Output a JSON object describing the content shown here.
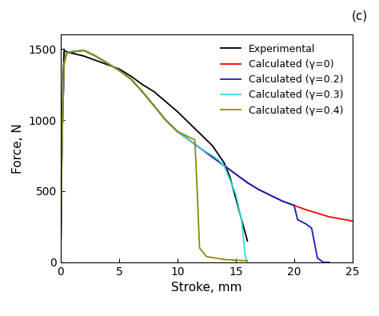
{
  "chart_data": {
    "type": "line",
    "panel_label": "(c)",
    "x_label": "Stroke, mm",
    "y_label": "Force, N",
    "xlim": [
      0,
      25
    ],
    "xticks": [
      0,
      5,
      10,
      15,
      20,
      25
    ],
    "ylim": [
      0,
      1600
    ],
    "yticks": [
      0,
      500,
      1000,
      1500
    ],
    "legend": "upper right",
    "grid": false,
    "series": [
      {
        "name": "Experimental",
        "color": "#000000",
        "x": [
          0,
          0.1,
          0.2,
          0.3,
          0.5,
          1,
          2,
          3,
          4,
          5,
          6,
          7,
          8,
          9,
          10,
          11,
          12,
          13,
          14,
          14.5,
          15,
          15.5,
          16
        ],
        "values": [
          0,
          700,
          1300,
          1490,
          1480,
          1470,
          1450,
          1420,
          1390,
          1360,
          1310,
          1250,
          1200,
          1130,
          1060,
          980,
          900,
          820,
          700,
          600,
          450,
          300,
          150
        ]
      },
      {
        "name": "Calculated (γ=0)",
        "color": "#ff0000",
        "x": [
          0,
          0.1,
          0.3,
          0.5,
          1,
          2,
          3,
          4,
          5,
          6,
          7,
          8,
          9,
          10,
          11,
          12,
          13,
          14,
          15,
          16,
          17,
          18,
          19,
          20,
          21,
          22,
          23,
          24,
          25
        ],
        "values": [
          0,
          800,
          1400,
          1470,
          1480,
          1490,
          1450,
          1400,
          1350,
          1290,
          1200,
          1100,
          1000,
          920,
          860,
          800,
          740,
          680,
          620,
          560,
          510,
          470,
          430,
          400,
          370,
          345,
          320,
          305,
          290
        ]
      },
      {
        "name": "Calculated (γ=0.2)",
        "color": "#1a1ab8",
        "x": [
          0,
          0.1,
          0.3,
          0.5,
          1,
          2,
          3,
          4,
          5,
          6,
          7,
          8,
          9,
          10,
          11,
          12,
          13,
          14,
          15,
          16,
          17,
          18,
          19,
          20,
          20.3,
          21,
          21.5,
          22,
          22.5,
          23
        ],
        "values": [
          0,
          800,
          1400,
          1470,
          1480,
          1490,
          1450,
          1400,
          1350,
          1290,
          1200,
          1100,
          1000,
          920,
          860,
          800,
          740,
          680,
          620,
          560,
          510,
          470,
          430,
          400,
          300,
          270,
          240,
          30,
          0,
          0
        ]
      },
      {
        "name": "Calculated (γ=0.3)",
        "color": "#33dddd",
        "x": [
          0,
          0.1,
          0.3,
          0.5,
          1,
          2,
          3,
          4,
          5,
          6,
          7,
          8,
          9,
          10,
          11,
          12,
          13,
          13.5,
          14,
          14.5,
          15,
          15.5,
          15.8,
          16
        ],
        "values": [
          0,
          800,
          1400,
          1470,
          1485,
          1490,
          1450,
          1400,
          1350,
          1290,
          1200,
          1100,
          1000,
          920,
          860,
          800,
          750,
          720,
          680,
          580,
          480,
          300,
          50,
          0
        ]
      },
      {
        "name": "Calculated (γ=0.4)",
        "color": "#8b8b00",
        "x": [
          0,
          0.1,
          0.3,
          0.5,
          1,
          2,
          3,
          4,
          5,
          6,
          7,
          8,
          9,
          10,
          11,
          11.5,
          11.7,
          11.9,
          12.5,
          14,
          16
        ],
        "values": [
          0,
          800,
          1400,
          1470,
          1480,
          1490,
          1450,
          1400,
          1350,
          1290,
          1200,
          1100,
          1000,
          920,
          880,
          860,
          500,
          100,
          40,
          20,
          10
        ]
      }
    ]
  }
}
